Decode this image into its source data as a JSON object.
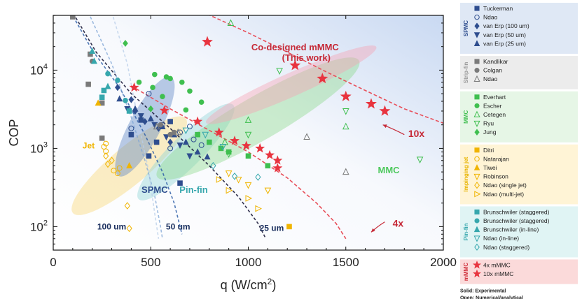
{
  "chart_data": {
    "type": "scatter",
    "title": "",
    "xlabel_main": "q (W/cm",
    "xlabel_sup": "2",
    "xlabel_tail": ")",
    "ylabel": "COP",
    "xlim": [
      0,
      2000
    ],
    "ylim_log10": [
      1.7,
      4.7
    ],
    "x_ticks": [
      0,
      500,
      1000,
      1500,
      2000
    ],
    "x_tick_labels": [
      "0",
      "500",
      "1000",
      "1500",
      "2000"
    ],
    "y_ticks": [
      100,
      1000,
      10000
    ],
    "y_tick_base": "10",
    "y_tick_exponents": [
      "2",
      "3",
      "4"
    ],
    "regions": [
      {
        "name": "jet",
        "label": "Jet",
        "color": "#f7d675",
        "cx": 390,
        "cy": 600,
        "rx": 540,
        "ry": 0.24,
        "angle": -40
      },
      {
        "name": "spmc",
        "label": "SPMC",
        "color": "#5b84c4",
        "cx": 470,
        "cy": 1900,
        "rx": 360,
        "ry": 0.2,
        "angle": -62
      },
      {
        "name": "pin-fin",
        "label": "Pin-fin",
        "color": "#8fd3d7",
        "cx": 680,
        "cy": 900,
        "rx": 470,
        "ry": 0.2,
        "angle": -45
      },
      {
        "name": "mmc",
        "label": "MMC",
        "color": "#8dd98d",
        "cx": 1050,
        "cy": 2400,
        "rx": 980,
        "ry": 0.28,
        "angle": -30
      },
      {
        "name": "mmmc",
        "label": "Co-designed mMMC",
        "label2": "(This work)",
        "color": "#f5a3b3",
        "cx": 1220,
        "cy": 6500,
        "rx": 740,
        "ry": 0.15,
        "angle": -24
      }
    ],
    "region_label_pos": {
      "jet": [
        150,
        1000
      ],
      "spmc": [
        520,
        270
      ],
      "pin-fin": [
        720,
        270
      ],
      "mmc": [
        1720,
        480
      ],
      "mmmc": [
        1240,
        18000
      ]
    },
    "limit_curves": [
      {
        "name": "25um",
        "label": "25 um",
        "color": "#1a1a3a",
        "alpha": 0.9,
        "points": [
          [
            90,
            60000
          ],
          [
            220,
            17000
          ],
          [
            400,
            5000
          ],
          [
            600,
            1800
          ],
          [
            800,
            600
          ],
          [
            950,
            240
          ],
          [
            1050,
            110
          ],
          [
            1090,
            70
          ]
        ],
        "label_at": [
          1120,
          88
        ]
      },
      {
        "name": "50um",
        "label": "50 um",
        "color": "#2f5fa8",
        "alpha": 0.85,
        "points": [
          [
            90,
            55000
          ],
          [
            200,
            18000
          ],
          [
            340,
            6000
          ],
          [
            470,
            1500
          ],
          [
            560,
            500
          ],
          [
            620,
            200
          ],
          [
            660,
            80
          ]
        ],
        "label_at": [
          640,
          92
        ]
      },
      {
        "name": "100um",
        "label": "100 um",
        "color": "#7da4d4",
        "alpha": 0.75,
        "points": [
          [
            180,
            55000
          ],
          [
            300,
            12000
          ],
          [
            400,
            2500
          ],
          [
            470,
            700
          ],
          [
            520,
            250
          ],
          [
            550,
            100
          ],
          [
            560,
            70
          ]
        ],
        "label_at": [
          300,
          92
        ]
      },
      {
        "name": "thin",
        "label": "",
        "color": "#b8cde8",
        "alpha": 0.75,
        "points": [
          [
            300,
            55000
          ],
          [
            380,
            12000
          ],
          [
            440,
            2000
          ],
          [
            490,
            500
          ],
          [
            520,
            150
          ],
          [
            540,
            70
          ]
        ]
      }
    ],
    "trend_curves": [
      {
        "name": "10x",
        "label": "10x",
        "color": "#e8505b",
        "points": [
          [
            790,
            52000
          ],
          [
            1000,
            30000
          ],
          [
            1200,
            17000
          ],
          [
            1400,
            9500
          ],
          [
            1600,
            5500
          ],
          [
            1800,
            3200
          ],
          [
            2000,
            2100
          ]
        ],
        "label_at": [
          1820,
          1400
        ],
        "arrow_from": [
          1800,
          1500
        ],
        "arrow_to": [
          1690,
          2000
        ]
      },
      {
        "name": "4x",
        "label": "4x",
        "color": "#e8505b",
        "points": [
          [
            400,
            6300
          ],
          [
            600,
            3200
          ],
          [
            800,
            1700
          ],
          [
            1000,
            900
          ],
          [
            1200,
            420
          ],
          [
            1350,
            200
          ],
          [
            1450,
            110
          ],
          [
            1500,
            70
          ]
        ],
        "label_at": [
          1740,
          100
        ],
        "arrow_from": [
          1700,
          115
        ],
        "arrow_to": [
          1630,
          85
        ]
      }
    ],
    "series": [
      {
        "group": "SPMC",
        "name": "Tuckerman",
        "marker": "square",
        "fill": true,
        "color": "#2e4d8e",
        "points": [
          [
            530,
            1200
          ],
          [
            600,
            2200
          ],
          [
            650,
            360
          ],
          [
            400,
            1500
          ],
          [
            450,
            2300
          ],
          [
            490,
            800
          ]
        ]
      },
      {
        "group": "SPMC",
        "name": "Ndao",
        "marker": "circle",
        "fill": false,
        "color": "#2e4d8e",
        "points": [
          [
            490,
            5000
          ],
          [
            560,
            2000
          ],
          [
            650,
            1600
          ],
          [
            720,
            1300
          ],
          [
            400,
            1800
          ],
          [
            600,
            1000
          ],
          [
            700,
            1900
          ],
          [
            760,
            1100
          ]
        ]
      },
      {
        "group": "SPMC",
        "name": "van Erp (100 um)",
        "marker": "diamond",
        "fill": true,
        "color": "#2e4d8e",
        "points": [
          [
            330,
            6000
          ],
          [
            420,
            3000
          ],
          [
            470,
            2200
          ],
          [
            540,
            1800
          ],
          [
            400,
            4200
          ],
          [
            600,
            1200
          ]
        ]
      },
      {
        "group": "SPMC",
        "name": "van Erp (50 um)",
        "marker": "tri-down",
        "fill": true,
        "color": "#2e4d8e",
        "points": [
          [
            380,
            3200
          ],
          [
            450,
            2600
          ],
          [
            520,
            2000
          ],
          [
            580,
            1400
          ],
          [
            650,
            1100
          ],
          [
            700,
            800
          ]
        ]
      },
      {
        "group": "SPMC",
        "name": "van Erp (25 um)",
        "marker": "tri-up",
        "fill": true,
        "color": "#2e4d8e",
        "points": [
          [
            340,
            4300
          ],
          [
            420,
            3200
          ],
          [
            500,
            2400
          ],
          [
            560,
            1900
          ],
          [
            620,
            1500
          ],
          [
            680,
            1200
          ],
          [
            740,
            900
          ],
          [
            790,
            780
          ]
        ]
      },
      {
        "group": "Strip-fin",
        "name": "Kandlikar",
        "marker": "square",
        "fill": true,
        "color": "#7a7a7a",
        "points": [
          [
            100,
            48000
          ],
          [
            180,
            6600
          ],
          [
            250,
            3800
          ],
          [
            250,
            1350
          ],
          [
            190,
            16000
          ]
        ]
      },
      {
        "group": "Strip-fin",
        "name": "Colgan",
        "marker": "circle",
        "fill": true,
        "color": "#7a7a7a",
        "points": [
          [
            550,
            2000
          ],
          [
            600,
            1500
          ],
          [
            620,
            1600
          ],
          [
            200,
            13000
          ]
        ]
      },
      {
        "group": "Strip-fin",
        "name": "Ndao",
        "marker": "tri-up-open",
        "fill": false,
        "color": "#7a7a7a",
        "points": [
          [
            530,
            1900
          ],
          [
            640,
            1600
          ],
          [
            1300,
            1400
          ],
          [
            1500,
            500
          ]
        ]
      },
      {
        "group": "MMC",
        "name": "Everhart",
        "marker": "square",
        "fill": true,
        "color": "#3fbf4f",
        "points": [
          [
            800,
            1200
          ],
          [
            900,
            900
          ],
          [
            740,
            1500
          ],
          [
            860,
            1000
          ],
          [
            1000,
            800
          ],
          [
            1100,
            600
          ]
        ]
      },
      {
        "group": "MMC",
        "name": "Escher",
        "marker": "circle",
        "fill": true,
        "color": "#3fbf4f",
        "points": [
          [
            520,
            8800
          ],
          [
            580,
            8200
          ],
          [
            660,
            7000
          ],
          [
            700,
            5400
          ],
          [
            760,
            3900
          ],
          [
            560,
            4600
          ],
          [
            600,
            7800
          ],
          [
            510,
            6000
          ],
          [
            680,
            3100
          ],
          [
            440,
            7000
          ]
        ]
      },
      {
        "group": "MMC",
        "name": "Cetegen",
        "marker": "tri-up-open",
        "fill": false,
        "color": "#3fbf4f",
        "points": [
          [
            910,
            40000
          ],
          [
            1500,
            1900
          ],
          [
            1000,
            2300
          ],
          [
            880,
            1200
          ]
        ]
      },
      {
        "group": "MMC",
        "name": "Ryu",
        "marker": "tri-down-open",
        "fill": false,
        "color": "#3fbf4f",
        "points": [
          [
            1160,
            9800
          ],
          [
            1500,
            3000
          ],
          [
            1880,
            720
          ],
          [
            1000,
            1500
          ],
          [
            900,
            850
          ]
        ]
      },
      {
        "group": "MMC",
        "name": "Jung",
        "marker": "diamond",
        "fill": true,
        "color": "#3fbf4f",
        "points": [
          [
            370,
            22000
          ],
          [
            500,
            3200
          ]
        ]
      },
      {
        "group": "Impinging jet",
        "name": "Ditri",
        "marker": "square",
        "fill": true,
        "color": "#f0b400",
        "points": [
          [
            1210,
            100
          ]
        ]
      },
      {
        "group": "Impinging jet",
        "name": "Natarajan",
        "marker": "circle-open",
        "fill": false,
        "color": "#f0b400",
        "points": [
          [
            260,
            1050
          ],
          [
            270,
            920
          ],
          [
            310,
            520
          ],
          [
            330,
            480
          ],
          [
            270,
            1150
          ],
          [
            340,
            560
          ]
        ]
      },
      {
        "group": "Impinging jet",
        "name": "Tiwei",
        "marker": "tri-up",
        "fill": true,
        "color": "#f0b400",
        "points": [
          [
            230,
            3800
          ],
          [
            390,
            600
          ]
        ]
      },
      {
        "group": "Impinging jet",
        "name": "Robinson",
        "marker": "tri-down-open",
        "fill": false,
        "color": "#f0b400",
        "points": [
          [
            950,
            400
          ],
          [
            1000,
            340
          ],
          [
            1100,
            290
          ],
          [
            900,
            480
          ]
        ]
      },
      {
        "group": "Impinging jet",
        "name": "Ndao (single jet)",
        "marker": "diamond-open",
        "fill": false,
        "color": "#f0b400",
        "points": [
          [
            270,
            800
          ],
          [
            300,
            700
          ],
          [
            280,
            630
          ],
          [
            380,
            185
          ],
          [
            390,
            95
          ]
        ]
      },
      {
        "group": "Impinging jet",
        "name": "Ndao (multi-jet)",
        "marker": "tri-right-open",
        "fill": false,
        "color": "#f0b400",
        "points": [
          [
            850,
            400
          ],
          [
            1000,
            230
          ],
          [
            1050,
            170
          ],
          [
            900,
            290
          ]
        ]
      },
      {
        "group": "Pin-fin",
        "name": "Brunschwiler (staggered)",
        "marker": "square",
        "fill": true,
        "color": "#36a7ad",
        "points": [
          [
            250,
            4500
          ],
          [
            260,
            5500
          ],
          [
            390,
            3000
          ]
        ]
      },
      {
        "group": "Pin-fin",
        "name": "Brunschwiler (staggered)",
        "marker": "circle",
        "fill": true,
        "color": "#36a7ad",
        "points": [
          [
            280,
            9000
          ],
          [
            330,
            7400
          ],
          [
            370,
            4100
          ]
        ]
      },
      {
        "group": "Pin-fin",
        "name": "Brunschwiler (in-line)",
        "marker": "tri-up",
        "fill": true,
        "color": "#36a7ad",
        "points": [
          [
            200,
            17500
          ],
          [
            210,
            13000
          ],
          [
            280,
            6200
          ]
        ]
      },
      {
        "group": "Pin-fin",
        "name": "Ndao (in-line)",
        "marker": "tri-down-open",
        "fill": false,
        "color": "#36a7ad",
        "points": [
          [
            780,
            1500
          ],
          [
            870,
            1050
          ],
          [
            680,
            1700
          ]
        ]
      },
      {
        "group": "Pin-fin",
        "name": "Ndao (staggered)",
        "marker": "diamond-open",
        "fill": false,
        "color": "#36a7ad",
        "points": [
          [
            930,
            440
          ],
          [
            1050,
            430
          ],
          [
            820,
            600
          ]
        ]
      },
      {
        "group": "mMMC",
        "name": "4x mMMC",
        "marker": "star",
        "fill": true,
        "color": "#e8343f",
        "size": 13,
        "points": [
          [
            415,
            6000
          ],
          [
            570,
            3050
          ],
          [
            740,
            2200
          ],
          [
            850,
            1600
          ],
          [
            930,
            1250
          ],
          [
            990,
            1080
          ],
          [
            1060,
            1000
          ],
          [
            1110,
            820
          ],
          [
            1150,
            700
          ],
          [
            1150,
            560
          ]
        ]
      },
      {
        "group": "mMMC",
        "name": "10x mMMC",
        "marker": "star",
        "fill": true,
        "color": "#e8343f",
        "size": 15,
        "points": [
          [
            790,
            23000
          ],
          [
            1240,
            11500
          ],
          [
            1380,
            7800
          ],
          [
            1500,
            4600
          ],
          [
            1630,
            3700
          ],
          [
            1700,
            3000
          ]
        ]
      }
    ],
    "legend_groups": [
      {
        "group": "SPMC",
        "bg": "#dfe8f5",
        "label_color": "#2e4d8e",
        "items": [
          "Tuckerman",
          "Ndao",
          "van Erp (100 um)",
          "van Erp (50 um)",
          "van Erp (25 um)"
        ]
      },
      {
        "group": "Strip-fin",
        "bg": "#ececec",
        "label_color": "#9a9a9a",
        "items": [
          "Kandlikar",
          "Colgan",
          "Ndao"
        ]
      },
      {
        "group": "MMC",
        "bg": "#e6f6e6",
        "label_color": "#3fbf4f",
        "items": [
          "Everhart",
          "Escher",
          "Cetegen",
          "Ryu",
          "Jung"
        ]
      },
      {
        "group": "Impinging jet",
        "bg": "#fff4d6",
        "label_color": "#e8b400",
        "items": [
          "Ditri",
          "Natarajan",
          "Tiwei",
          "Robinson",
          "Ndao (single jet)",
          "Ndao (multi-jet)"
        ]
      },
      {
        "group": "Pin-fin",
        "bg": "#e0f4f4",
        "label_color": "#36a7ad",
        "items": [
          "Brunschwiler (staggered)",
          "Brunschwiler (staggered)",
          "Brunschwiler (in-line)",
          "Ndao (in-line)",
          "Ndao (staggered)"
        ]
      },
      {
        "group": "mMMC",
        "bg": "#fbdada",
        "label_color": "#d02e3a",
        "items": [
          "4x mMMC",
          "10x mMMC"
        ]
      }
    ],
    "footnote": [
      "Solid: Experimental",
      "Open: Numerical/analytical"
    ]
  }
}
